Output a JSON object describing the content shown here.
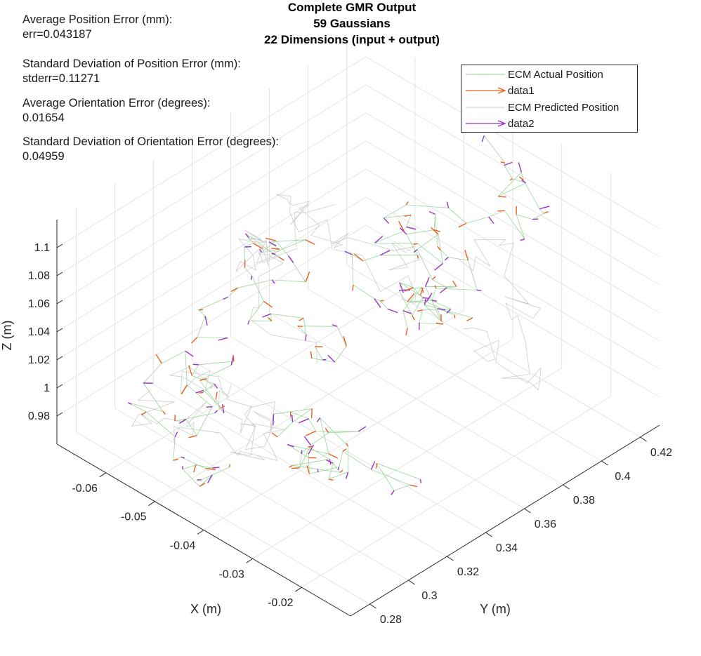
{
  "annotations": {
    "pos_err_label": "Average Position Error (mm):",
    "pos_err_value": "err=0.043187",
    "pos_std_label": "Standard Deviation of Position Error (mm):",
    "pos_std_value": "stderr=0.11271",
    "ori_err_label": "Average Orientation Error (degrees):",
    "ori_err_value": "0.01654",
    "ori_std_label": "Standard Deviation of Orientation Error (degrees):",
    "ori_std_value": "0.04959"
  },
  "legend": {
    "item1": "ECM Actual Position",
    "item2": "data1",
    "item3": "ECM Predicted Position",
    "item4": "data2"
  },
  "colors": {
    "actual_line": "#8fd18f",
    "predicted_line": "#c8c8c8",
    "data1_arrow": "#e8601c",
    "data2_arrow": "#9b30c8",
    "grid": "#e4e4e4",
    "axis": "#262626"
  },
  "chart_data": {
    "type": "line",
    "plot_kind": "3d-trajectory-with-quiver",
    "title": [
      "Complete GMR Output",
      "59 Gaussians",
      "22 Dimensions (input + output)"
    ],
    "xlabel": "X (m)",
    "ylabel": "Y (m)",
    "zlabel": "Z (m)",
    "xlim": [
      -0.07,
      -0.01
    ],
    "ylim": [
      0.27,
      0.43
    ],
    "zlim": [
      0.96,
      1.12
    ],
    "x_ticks": [
      "-0.06",
      "-0.05",
      "-0.04",
      "-0.03",
      "-0.02"
    ],
    "y_ticks": [
      "0.28",
      "0.3",
      "0.32",
      "0.34",
      "0.36",
      "0.38",
      "0.4",
      "0.42"
    ],
    "z_ticks": [
      "0.98",
      "1",
      "1.02",
      "1.04",
      "1.06",
      "1.08",
      "1.1"
    ],
    "grid": true,
    "legend_position": "top-right",
    "series": [
      {
        "name": "ECM Actual Position",
        "style": "line"
      },
      {
        "name": "data1",
        "style": "quiver"
      },
      {
        "name": "ECM Predicted Position",
        "style": "line"
      },
      {
        "name": "data2",
        "style": "quiver"
      }
    ]
  }
}
